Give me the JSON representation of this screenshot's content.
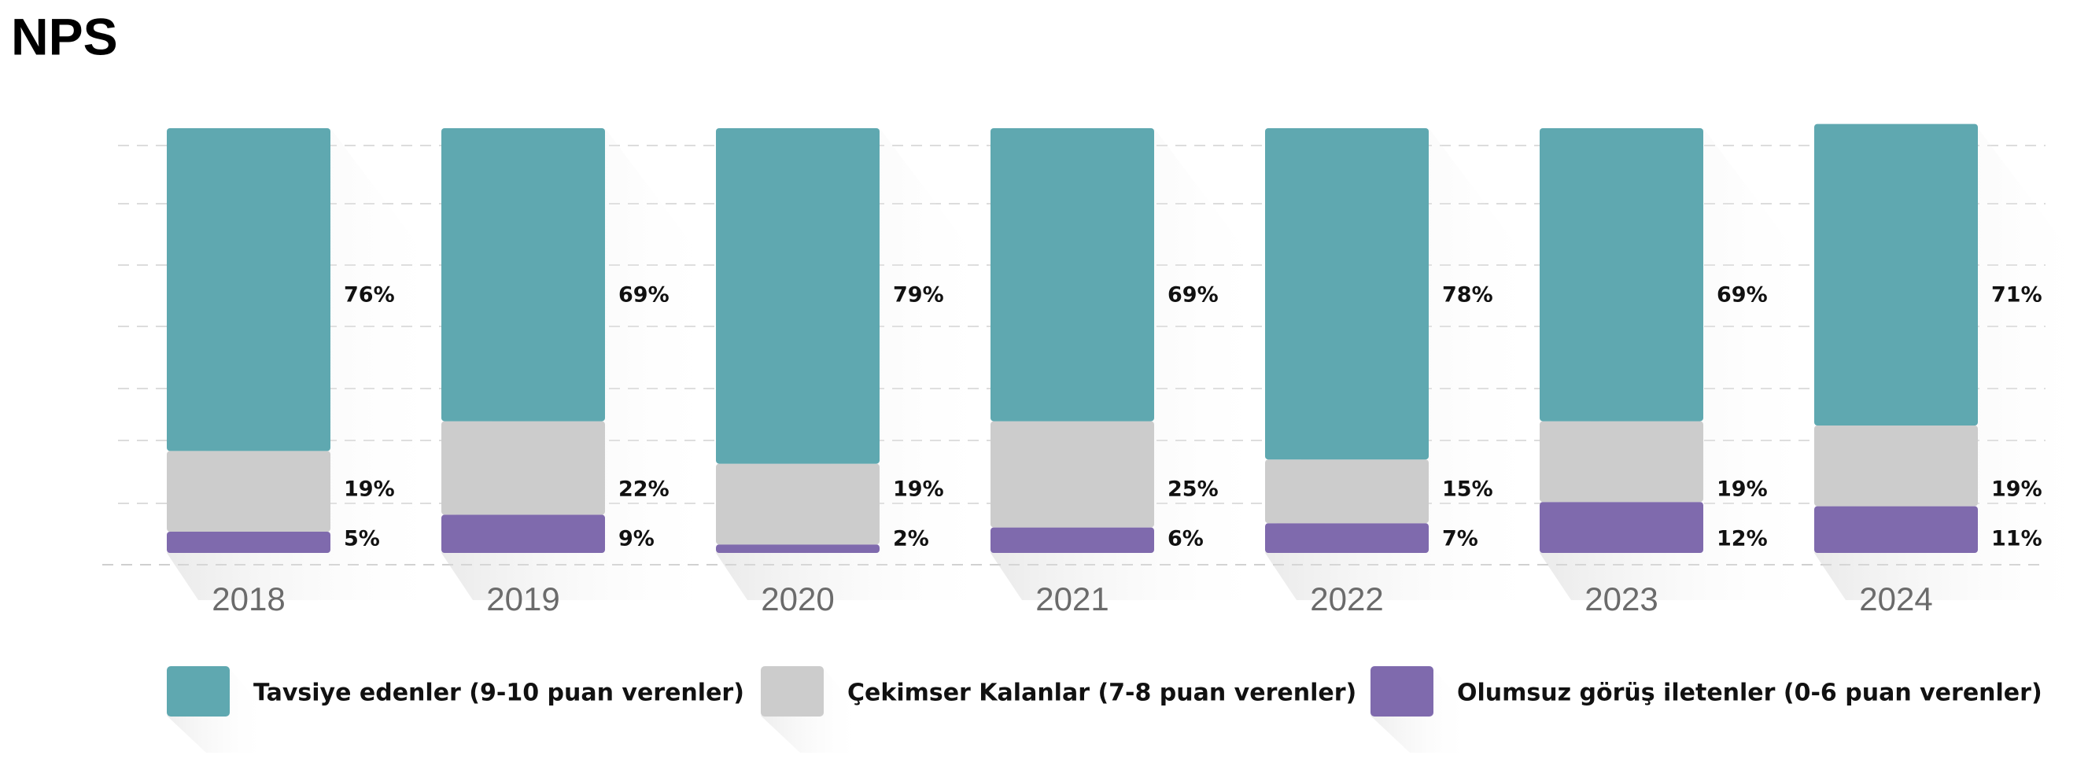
{
  "chart_data": {
    "type": "stacked_bar",
    "title": "NPS",
    "categories": [
      "2018",
      "2019",
      "2020",
      "2021",
      "2022",
      "2023",
      "2024"
    ],
    "ylim": [
      0,
      100
    ],
    "grid": true,
    "series": [
      {
        "name": "Tavsiye edenler (9-10 puan verenler)",
        "color": "#5fa8b0",
        "values": [
          76,
          69,
          79,
          69,
          78,
          69,
          71
        ],
        "value_labels": [
          "76%",
          "69%",
          "79%",
          "69%",
          "78%",
          "69%",
          "71%"
        ]
      },
      {
        "name": "Çekimser Kalanlar (7-8 puan verenler)",
        "color": "#cccccc",
        "values": [
          19,
          22,
          19,
          25,
          15,
          19,
          19
        ],
        "value_labels": [
          "19%",
          "22%",
          "19%",
          "25%",
          "15%",
          "19%",
          "19%"
        ]
      },
      {
        "name": "Olumsuz görüş iletenler (0-6 puan verenler)",
        "color": "#7f6aad",
        "values": [
          5,
          9,
          2,
          6,
          7,
          12,
          11
        ],
        "value_labels": [
          "5%",
          "9%",
          "2%",
          "6%",
          "7%",
          "12%",
          "11%"
        ]
      }
    ]
  }
}
